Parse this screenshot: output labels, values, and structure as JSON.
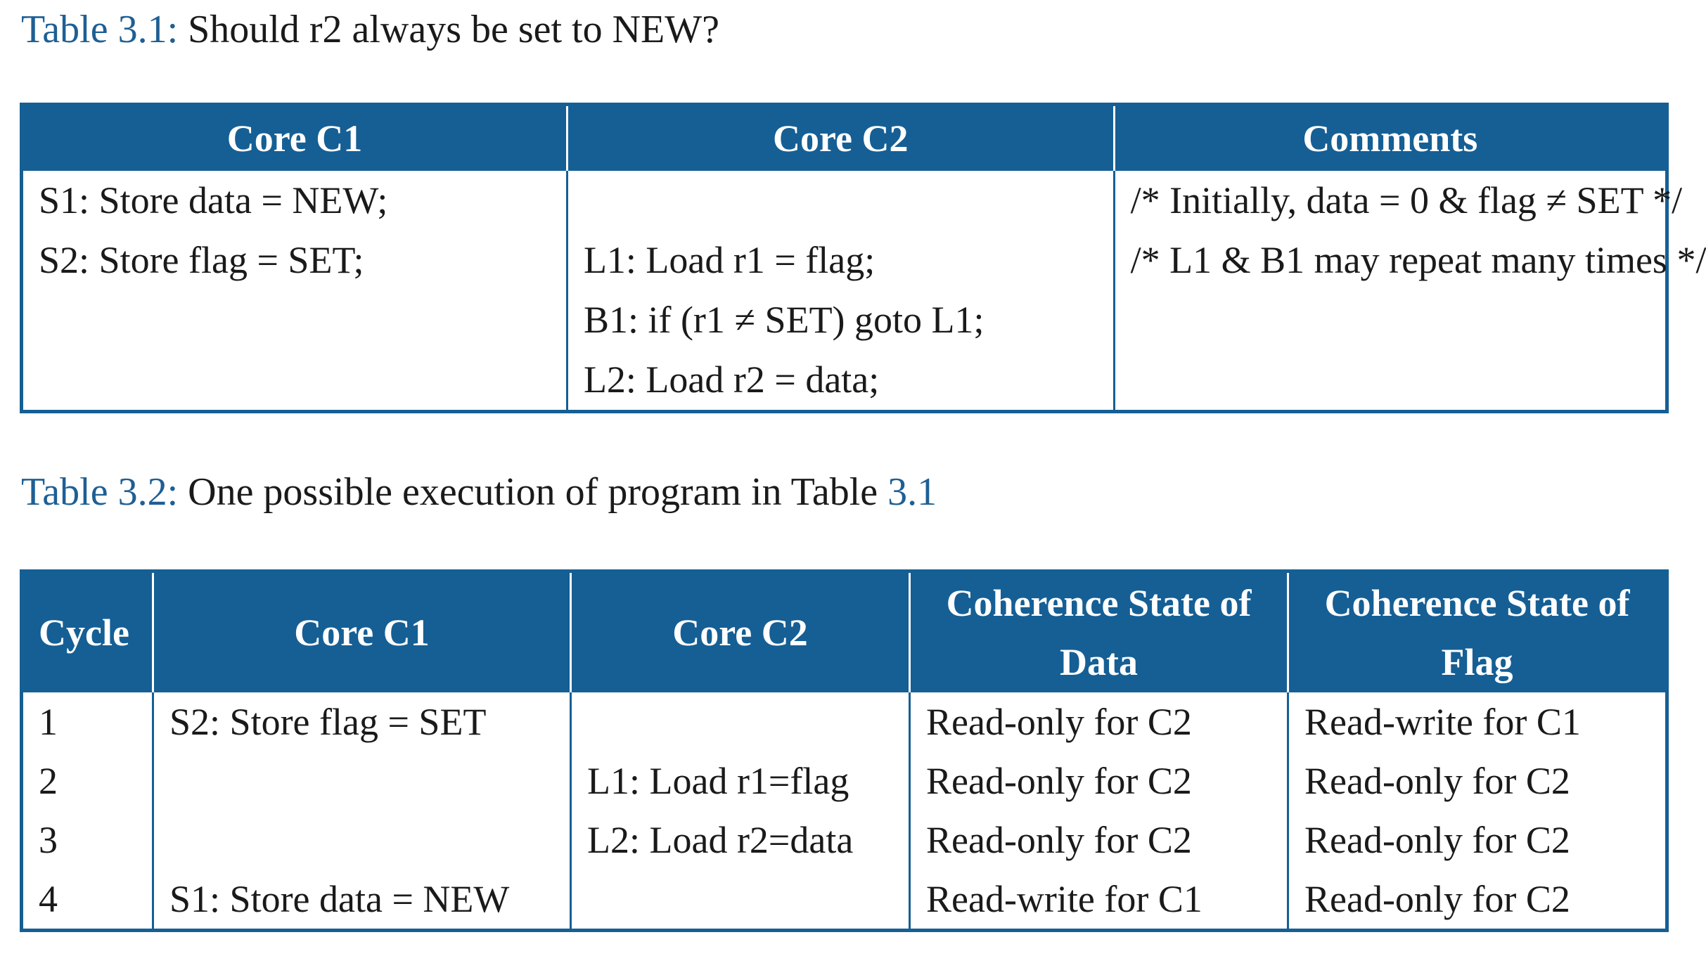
{
  "table1": {
    "caption_label": "Table 3.1:",
    "caption_text": "Should r2 always be set to NEW?",
    "headers": [
      "Core C1",
      "Core C2",
      "Comments"
    ],
    "core_c1_lines": [
      "S1: Store data = NEW;",
      "S2: Store flag = SET;"
    ],
    "core_c2_lines": [
      "L1: Load r1 = flag;",
      "B1: if (r1 ≠ SET) goto L1;",
      "L2: Load r2 = data;"
    ],
    "comments_lines": [
      "/* Initially, data = 0 & flag ≠ SET */",
      "/* L1 & B1 may repeat many times */"
    ]
  },
  "table2": {
    "caption_label": "Table 3.2:",
    "caption_text": "One possible execution of program in Table ",
    "caption_ref": "3.1",
    "headers": [
      "Cycle",
      "Core C1",
      "Core C2",
      "Coherence State of Data",
      "Coherence State of Flag"
    ],
    "rows": [
      [
        "1",
        "S2: Store flag = SET",
        "",
        "Read-only for C2",
        "Read-write for C1"
      ],
      [
        "2",
        "",
        "L1: Load r1=flag",
        "Read-only for C2",
        "Read-only for C2"
      ],
      [
        "3",
        "",
        "L2: Load r2=data",
        "Read-only for C2",
        "Read-only for C2"
      ],
      [
        "4",
        "S1: Store data = NEW",
        "",
        "Read-write for C1",
        "Read-only for C2"
      ]
    ]
  }
}
